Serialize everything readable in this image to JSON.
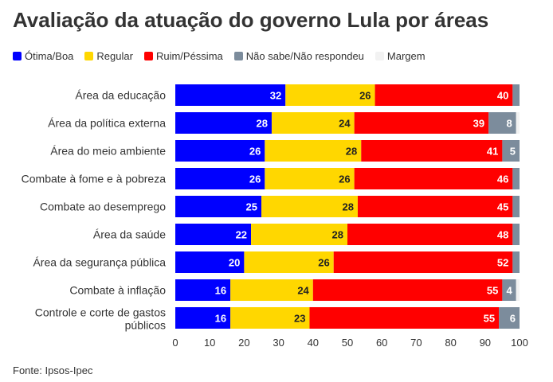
{
  "title": "Avaliação da atuação do governo Lula por áreas",
  "source": "Fonte: Ipsos-Ipec",
  "colors": {
    "otima": "#0000ff",
    "regular": "#ffd700",
    "ruim": "#ff0000",
    "nao_sabe": "#7c8c9c",
    "margem": "#f2f2f2"
  },
  "chart_data": {
    "type": "bar",
    "orientation": "horizontal",
    "stacked": true,
    "title": "Avaliação da atuação do governo Lula por áreas",
    "categories": [
      "Área da educação",
      "Área da política externa",
      "Área do meio ambiente",
      "Combate à fome e à pobreza",
      "Combate ao desemprego",
      "Área da saúde",
      "Área da segurança pública",
      "Combate à inflação",
      "Controle e corte de gastos públicos"
    ],
    "series": [
      {
        "name": "Ótima/Boa",
        "color": "#0000ff",
        "values": [
          32,
          28,
          26,
          26,
          25,
          22,
          20,
          16,
          16
        ]
      },
      {
        "name": "Regular",
        "color": "#ffd700",
        "values": [
          26,
          24,
          28,
          26,
          28,
          28,
          26,
          24,
          23
        ]
      },
      {
        "name": "Ruim/Péssima",
        "color": "#ff0000",
        "values": [
          40,
          39,
          41,
          46,
          45,
          48,
          52,
          55,
          55
        ]
      },
      {
        "name": "Não sabe/Não respondeu",
        "color": "#7c8c9c",
        "values": [
          2,
          8,
          5,
          2,
          2,
          2,
          2,
          4,
          6
        ]
      },
      {
        "name": "Margem",
        "color": "#f2f2f2",
        "values": [
          0,
          1,
          0,
          0,
          0,
          0,
          0,
          1,
          0
        ]
      }
    ],
    "xlim": [
      0,
      100
    ],
    "xticks": [
      0,
      10,
      20,
      30,
      40,
      50,
      60,
      70,
      80,
      90,
      100
    ],
    "grid": false,
    "legend": "top-left"
  }
}
